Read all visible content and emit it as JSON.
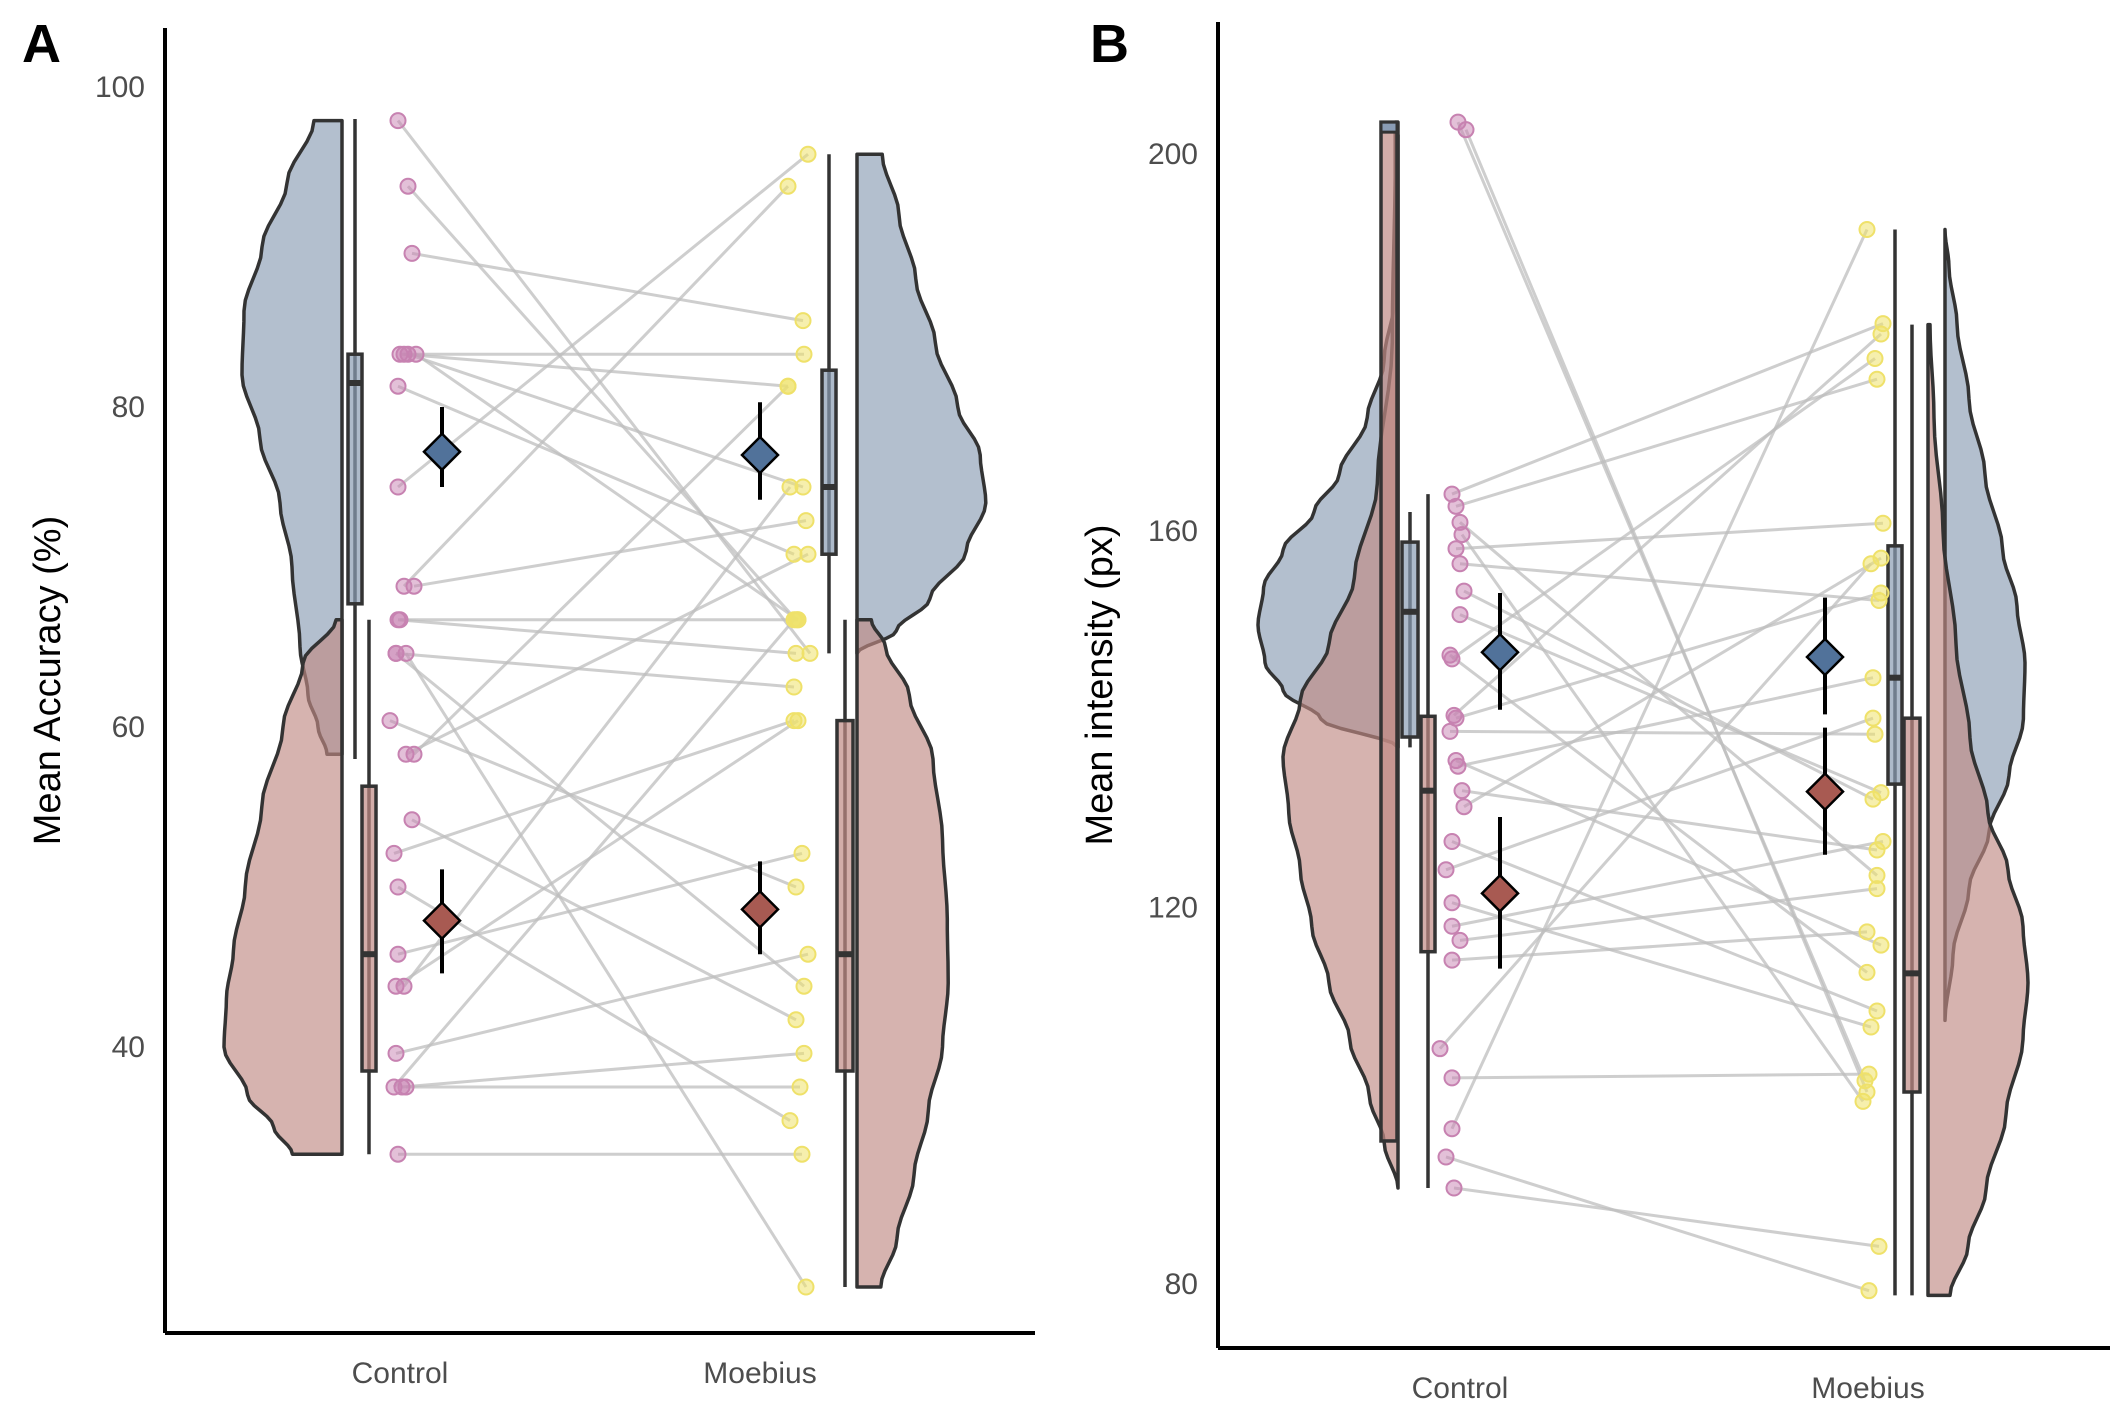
{
  "colors": {
    "blue_fill": "#8a9cb4",
    "red_fill": "#c08a84",
    "blue_marker": "#51729a",
    "red_marker": "#a85a52",
    "control_points": "#c782b1",
    "moebius_points": "#efe16a",
    "lines": "#bdbdbd",
    "outline": "#333333"
  },
  "chart_data": [
    {
      "panel": "A",
      "type": "raincloud",
      "ylabel": "Mean Accuracy (%)",
      "categories": [
        "Control",
        "Moebius"
      ],
      "yticks": [
        40,
        60,
        80,
        100
      ],
      "ylim": [
        22,
        102
      ],
      "series": [
        {
          "role": "blue",
          "summary": {
            "Control": {
              "mean": 77.2,
              "ci": [
                75,
                80
              ],
              "box": {
                "min": 58,
                "q1": 67.7,
                "median": 81.5,
                "q3": 83.3,
                "max": 98
              }
            },
            "Moebius": {
              "mean": 77,
              "ci": [
                74.2,
                80.3
              ],
              "box": {
                "min": 64.6,
                "q1": 70.8,
                "median": 75,
                "q3": 82.3,
                "max": 95.8
              }
            }
          },
          "density_range": {
            "Control": [
              58.3,
              97.9
            ],
            "Moebius": [
              64.6,
              95.8
            ]
          }
        },
        {
          "role": "red",
          "summary": {
            "Control": {
              "mean": 47.9,
              "ci": [
                44.6,
                51.1
              ],
              "box": {
                "min": 33.3,
                "q1": 38.5,
                "median": 45.8,
                "q3": 56.3,
                "max": 66.7
              }
            },
            "Moebius": {
              "mean": 48.6,
              "ci": [
                45.8,
                51.6
              ],
              "box": {
                "min": 25,
                "q1": 38.5,
                "median": 45.8,
                "q3": 60.4,
                "max": 66.7
              }
            }
          },
          "density_range": {
            "Control": [
              33.3,
              66.7
            ],
            "Moebius": [
              25,
              66.7
            ]
          }
        }
      ],
      "pairs": [
        [
          97.9,
          64.6
        ],
        [
          93.8,
          66.7
        ],
        [
          89.6,
          85.4
        ],
        [
          83.3,
          83.3
        ],
        [
          83.3,
          81.3
        ],
        [
          83.3,
          66.7
        ],
        [
          83.3,
          75
        ],
        [
          81.3,
          70.8
        ],
        [
          75,
          95.8
        ],
        [
          68.8,
          93.8
        ],
        [
          68.8,
          72.9
        ],
        [
          66.7,
          66.7
        ],
        [
          66.7,
          64.6
        ],
        [
          64.6,
          62.5
        ],
        [
          64.6,
          43.8
        ],
        [
          64.6,
          25
        ],
        [
          60.4,
          50
        ],
        [
          58.3,
          81.3
        ],
        [
          58.3,
          70.8
        ],
        [
          54.2,
          41.7
        ],
        [
          52.1,
          60.4
        ],
        [
          50,
          35.4
        ],
        [
          45.8,
          52.1
        ],
        [
          43.8,
          60.4
        ],
        [
          43.8,
          75
        ],
        [
          39.6,
          45.8
        ],
        [
          37.5,
          66.7
        ],
        [
          37.5,
          39.6
        ],
        [
          37.5,
          37.5
        ],
        [
          33.3,
          33.3
        ]
      ]
    },
    {
      "panel": "B",
      "type": "raincloud",
      "ylabel": "Mean intensity (px)",
      "categories": [
        "Control",
        "Moebius"
      ],
      "yticks": [
        80,
        120,
        160,
        200
      ],
      "ylim": [
        73,
        210
      ],
      "series": [
        {
          "role": "blue",
          "summary": {
            "Control": {
              "mean": 147.1,
              "ci": [
                141,
                153.4
              ],
              "box": {
                "min": 137,
                "q1": 138.1,
                "median": 151.4,
                "q3": 158.8,
                "max": 162
              }
            },
            "Moebius": {
              "mean": 146.6,
              "ci": [
                140.5,
                152.9
              ],
              "box": {
                "min": 78.8,
                "q1": 133.1,
                "median": 144.4,
                "q3": 158.4,
                "max": 192
              }
            },
            "Control_box_top": 203.4,
            "Control_box_cap": 202
          },
          "density_range": {
            "Control": [
              137,
              203.4
            ],
            "Moebius": [
              108,
              192
            ]
          }
        },
        {
          "role": "red",
          "summary": {
            "Control": {
              "mean": 121.5,
              "ci": [
                113.5,
                129.6
              ],
              "box": {
                "min": 90.2,
                "q1": 115.3,
                "median": 132.4,
                "q3": 140.3,
                "max": 163.9
              }
            },
            "Moebius": {
              "mean": 132.3,
              "ci": [
                125.6,
                139.1
              ],
              "box": {
                "min": 78.8,
                "q1": 100.4,
                "median": 113,
                "q3": 140.1,
                "max": 181.9
              }
            }
          },
          "density_range": {
            "Control": [
              90.2,
              202
            ],
            "Moebius": [
              78.8,
              181.9
            ]
          }
        }
      ],
      "pairs": [
        [
          203.4,
          101.6
        ],
        [
          202.6,
          100.4
        ],
        [
          163.9,
          182
        ],
        [
          162.6,
          176.1
        ],
        [
          160.9,
          123.4
        ],
        [
          159.6,
          99.4
        ],
        [
          158.1,
          160.8
        ],
        [
          156.5,
          152.6
        ],
        [
          153.6,
          131.5
        ],
        [
          151.1,
          132.2
        ],
        [
          146.8,
          113.1
        ],
        [
          146.4,
          178.3
        ],
        [
          140.4,
          180.9
        ],
        [
          140.1,
          153.4
        ],
        [
          138.7,
          138.4
        ],
        [
          135.6,
          116
        ],
        [
          135,
          144.4
        ],
        [
          132.4,
          126.1
        ],
        [
          130.7,
          157.1
        ],
        [
          124,
          140.1
        ],
        [
          120.5,
          107.3
        ],
        [
          118,
          127
        ],
        [
          116.5,
          122
        ],
        [
          114.4,
          117.4
        ],
        [
          105,
          156.5
        ],
        [
          101.9,
          102.3
        ],
        [
          96.5,
          192
        ],
        [
          90.2,
          84
        ],
        [
          93.5,
          79.3
        ],
        [
          127,
          109
        ]
      ]
    }
  ]
}
